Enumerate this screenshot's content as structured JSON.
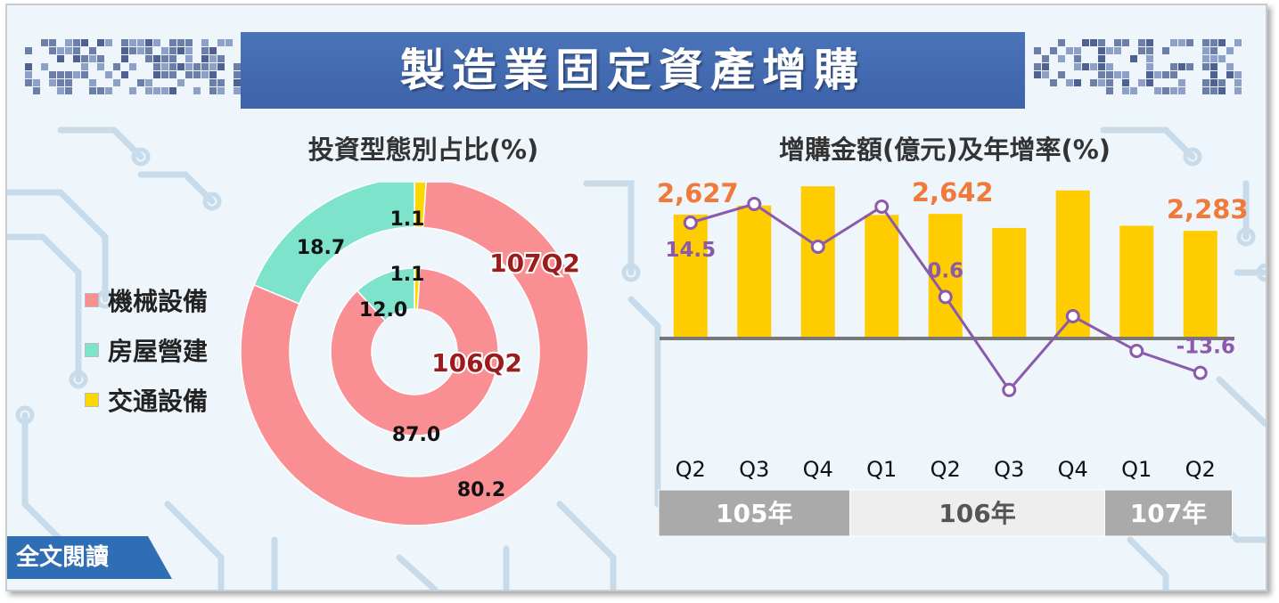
{
  "page": {
    "title": "製造業固定資產增購",
    "read_more_label": "全文閱讀"
  },
  "colors": {
    "title_band": "#3f66ad",
    "machinery": "#f98f93",
    "building": "#7de3cb",
    "transport": "#fdd700",
    "bar": "#ffcc00",
    "line": "#8a5aab",
    "amount_label": "#ef7a3a",
    "axis": "#777777",
    "year_band_dark": "#aaaaaa",
    "year_band_light": "#eeeeee",
    "read_btn": "#2f6db5"
  },
  "chart_data": [
    {
      "type": "donut",
      "title": "投資型態別占比(%)",
      "legend": [
        {
          "name": "機械設備",
          "color": "#f98f93"
        },
        {
          "name": "房屋營建",
          "color": "#7de3cb"
        },
        {
          "name": "交通設備",
          "color": "#fdd700"
        }
      ],
      "rings": [
        {
          "name": "107Q2",
          "values": [
            80.2,
            18.7,
            1.1
          ],
          "labels": [
            "80.2",
            "18.7",
            "1.1"
          ]
        },
        {
          "name": "106Q2",
          "values": [
            87.0,
            12.0,
            1.1
          ],
          "labels": [
            "87.0",
            "12.0",
            "1.1"
          ]
        }
      ]
    },
    {
      "type": "bar+line",
      "title": "增購金額(億元)及年增率(%)",
      "categories": [
        "Q2",
        "Q3",
        "Q4",
        "Q1",
        "Q2",
        "Q3",
        "Q4",
        "Q1",
        "Q2"
      ],
      "year_groups": [
        {
          "label": "105年",
          "span": 3
        },
        {
          "label": "106年",
          "span": 4
        },
        {
          "label": "107年",
          "span": 2
        }
      ],
      "series": [
        {
          "type": "bar",
          "values": [
            2627,
            2818,
            3227,
            2620,
            2642,
            2344,
            3139,
            2390,
            2283
          ]
        },
        {
          "type": "line",
          "values": [
            14.5,
            18.0,
            10.0,
            17.5,
            0.6,
            -16.8,
            -3.0,
            -9.5,
            -13.6
          ]
        }
      ],
      "bar_labels": [
        {
          "index": 0,
          "text": "2,627"
        },
        {
          "index": 4,
          "text": "2,642"
        },
        {
          "index": 8,
          "text": "2,283"
        }
      ],
      "line_labels": [
        {
          "index": 0,
          "text": "14.5"
        },
        {
          "index": 4,
          "text": "0.6"
        },
        {
          "index": 8,
          "text": "-13.6"
        }
      ]
    }
  ]
}
